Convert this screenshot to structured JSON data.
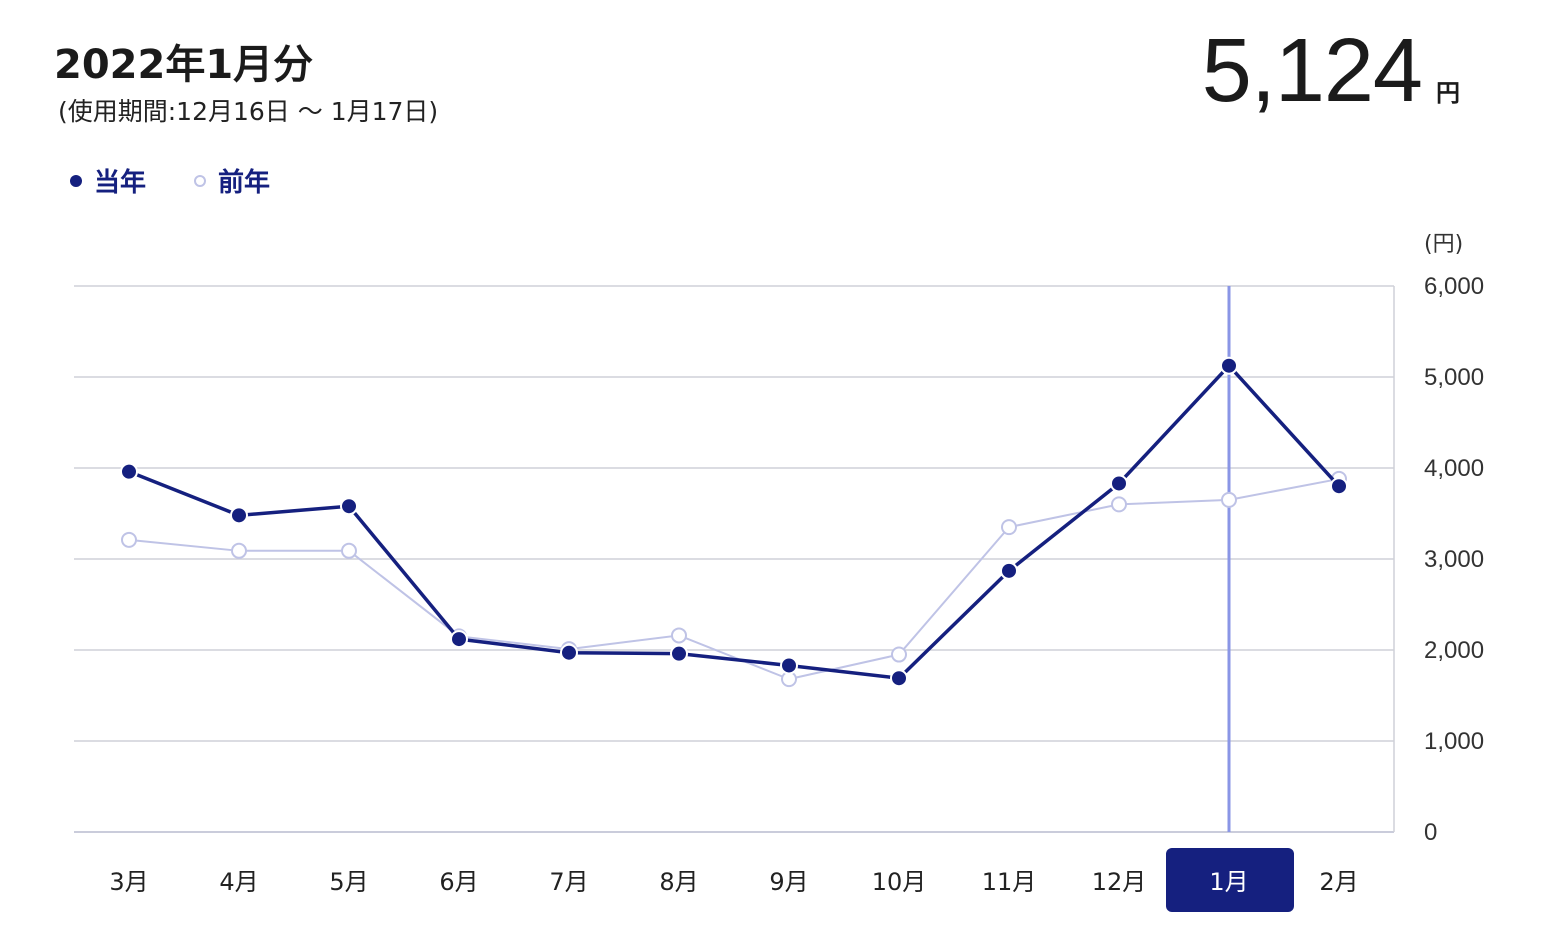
{
  "header": {
    "title": "2022年1月分",
    "period": "(使用期間:12月16日 〜 1月17日)",
    "amount": "5,124",
    "amount_unit": "円"
  },
  "legend": {
    "current_label": "当年",
    "previous_label": "前年"
  },
  "colors": {
    "current": "#15207f",
    "previous": "#bfc3e6",
    "selected_line": "#8a96e6",
    "selected_bg": "#15207f",
    "grid": "#cfd1d8"
  },
  "chart_data": {
    "type": "line",
    "ylabel": "(円)",
    "ylim": [
      0,
      6000
    ],
    "yticks": [
      "0",
      "1,000",
      "2,000",
      "3,000",
      "4,000",
      "5,000",
      "6,000"
    ],
    "ytick_values": [
      0,
      1000,
      2000,
      3000,
      4000,
      5000,
      6000
    ],
    "categories": [
      "3月",
      "4月",
      "5月",
      "6月",
      "7月",
      "8月",
      "9月",
      "10月",
      "11月",
      "12月",
      "1月",
      "2月"
    ],
    "selected_category": "1月",
    "series": [
      {
        "name": "当年",
        "values": [
          3960,
          3480,
          3580,
          2120,
          1970,
          1960,
          1830,
          1690,
          2870,
          3830,
          5124,
          3800
        ]
      },
      {
        "name": "前年",
        "values": [
          3210,
          3090,
          3090,
          2150,
          2010,
          2160,
          1680,
          1950,
          3350,
          3600,
          3650,
          3880
        ]
      }
    ],
    "grid": true,
    "legend_position": "top-left"
  }
}
